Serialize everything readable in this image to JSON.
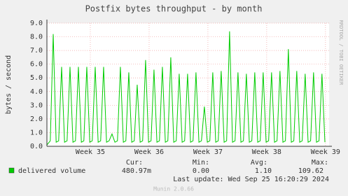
{
  "chart_data": {
    "type": "line",
    "title": "Postfix bytes throughput - by month",
    "ylabel": "bytes / second",
    "side_label": "RRDTOOL / TOBI OETIKER",
    "xlim": [
      0,
      33.6
    ],
    "xticks": [
      {
        "value": 5.17,
        "label": "Week 35"
      },
      {
        "value": 12.17,
        "label": "Week 36"
      },
      {
        "value": 19.17,
        "label": "Week 37"
      },
      {
        "value": 26.17,
        "label": "Week 38"
      },
      {
        "value": 33.17,
        "label": "Week 39"
      }
    ],
    "ylim": [
      0,
      9
    ],
    "yticks": [
      {
        "value": 0,
        "label": "0.0"
      },
      {
        "value": 1,
        "label": "1.0"
      },
      {
        "value": 2,
        "label": "2.0"
      },
      {
        "value": 3,
        "label": "3.0"
      },
      {
        "value": 4,
        "label": "4.0"
      },
      {
        "value": 5,
        "label": "5.0"
      },
      {
        "value": 6,
        "label": "6.0"
      },
      {
        "value": 7,
        "label": "7.0"
      },
      {
        "value": 8,
        "label": "8.0"
      },
      {
        "value": 9,
        "label": "9.0"
      }
    ],
    "grid": true,
    "x": [
      0,
      0.4,
      0.75,
      1.1,
      1.4,
      1.75,
      2.1,
      2.4,
      2.75,
      3.1,
      3.4,
      3.75,
      4.1,
      4.4,
      4.75,
      5.1,
      5.4,
      5.75,
      6.1,
      6.4,
      6.75,
      7.1,
      7.4,
      7.75,
      8.1,
      8.4,
      8.75,
      9.1,
      9.4,
      9.75,
      10.1,
      10.4,
      10.75,
      11.1,
      11.4,
      11.75,
      12.1,
      12.4,
      12.75,
      13.1,
      13.4,
      13.75,
      14.1,
      14.4,
      14.75,
      15.1,
      15.4,
      15.75,
      16.1,
      16.4,
      16.75,
      17.1,
      17.4,
      17.75,
      18.1,
      18.4,
      18.75,
      19.1,
      19.4,
      19.75,
      20.1,
      20.4,
      20.75,
      21.1,
      21.4,
      21.75,
      22.1,
      22.4,
      22.75,
      23.1,
      23.4,
      23.75,
      24.1,
      24.4,
      24.75,
      25.1,
      25.4,
      25.75,
      26.1,
      26.4,
      26.75,
      27.1,
      27.4,
      27.75,
      28.1,
      28.4,
      28.75,
      29.1,
      29.4,
      29.75,
      30.1,
      30.4,
      30.75,
      31.1,
      31.4,
      31.75,
      32.1,
      32.4,
      32.75,
      33.1
    ],
    "series": [
      {
        "name": "delivered volume",
        "color": "#00cc00",
        "values": [
          0.1,
          0.4,
          8.2,
          0.3,
          0.4,
          5.8,
          0.3,
          0.4,
          5.8,
          0.3,
          0.4,
          5.8,
          0.3,
          0.4,
          5.8,
          0.3,
          0.4,
          5.8,
          0.3,
          0.4,
          5.8,
          0.3,
          0.4,
          0.9,
          0.3,
          0.4,
          5.8,
          0.3,
          0.4,
          5.4,
          0.3,
          0.4,
          4.5,
          0.3,
          0.4,
          6.3,
          0.3,
          0.4,
          5.6,
          0.3,
          0.4,
          5.8,
          0.3,
          0.4,
          6.5,
          0.3,
          0.4,
          5.3,
          0.3,
          0.4,
          5.3,
          0.3,
          0.4,
          5.4,
          0.3,
          0.4,
          2.9,
          0.3,
          0.4,
          5.4,
          0.3,
          0.4,
          5.5,
          0.3,
          0.4,
          8.4,
          0.3,
          0.4,
          5.4,
          0.3,
          0.4,
          5.3,
          0.3,
          0.4,
          5.4,
          0.3,
          0.4,
          5.4,
          0.3,
          0.4,
          5.4,
          0.3,
          0.4,
          5.5,
          0.3,
          0.4,
          7.1,
          0.3,
          0.4,
          5.5,
          0.3,
          0.4,
          5.3,
          0.3,
          0.4,
          5.4,
          0.3,
          0.4,
          5.3,
          0.3
        ]
      }
    ],
    "stats": {
      "headers": [
        "Cur:",
        "Min:",
        "Avg:",
        "Max:"
      ],
      "values": [
        "480.97m",
        "0.00",
        "1.10",
        "109.62"
      ]
    },
    "last_update": "Last update: Wed Sep 25 16:20:29 2024",
    "footer": "Munin 2.0.66"
  }
}
